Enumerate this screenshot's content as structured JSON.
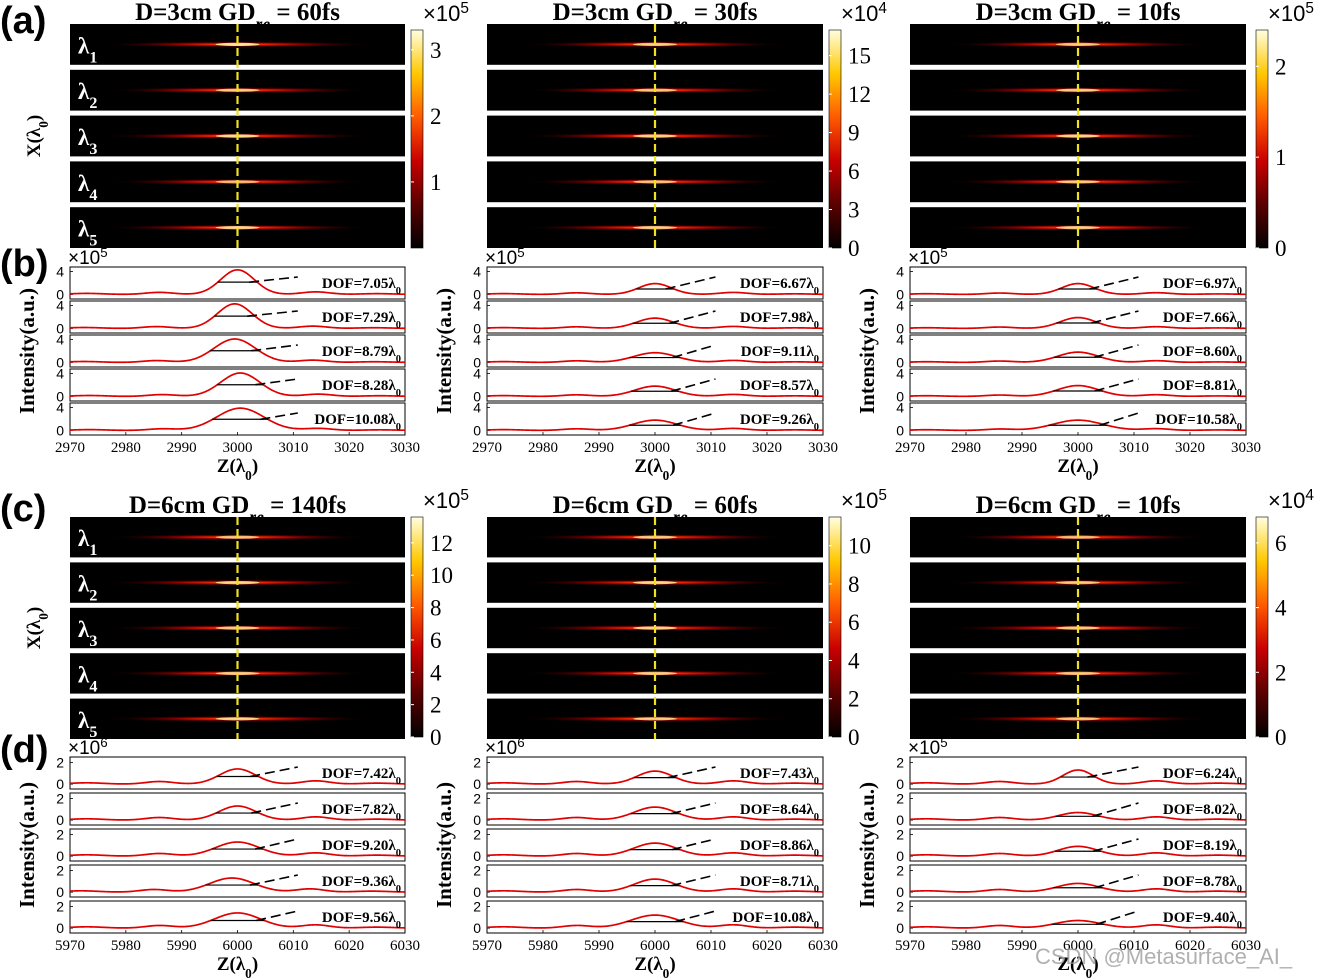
{
  "panel_letters": [
    "(a)",
    "(b)",
    "(c)",
    "(d)"
  ],
  "watermark": "CSDN @Metasurface_AI_",
  "colors": {
    "curve": "#e00000",
    "focus_line": "#f0e020",
    "fwhm_line": "#000000",
    "colormap": [
      "#000000",
      "#5a0000",
      "#c80000",
      "#ff5a00",
      "#ffc800",
      "#ffffe0"
    ]
  },
  "wavelength_labels": [
    "λ1",
    "λ2",
    "λ3",
    "λ4",
    "λ5"
  ],
  "chart_data": [
    {
      "id": "a1",
      "type": "heatmap",
      "title": "D=3cm  GDre = 60fs",
      "ylabel": "X(λ0)",
      "focus_z": 3000,
      "colorbar": {
        "exponent": "×10^5",
        "ticks": [
          "3",
          "2",
          "1"
        ],
        "max": 3.3
      },
      "band_peaks": [
        1.0,
        0.85,
        0.95,
        0.75,
        0.9
      ]
    },
    {
      "id": "a2",
      "type": "heatmap",
      "title": "D=3cm GDre = 30fs",
      "ylabel": "",
      "focus_z": 3000,
      "colorbar": {
        "exponent": "×10^4",
        "ticks": [
          "15",
          "12",
          "9",
          "6",
          "3",
          "0"
        ],
        "max": 17
      },
      "band_peaks": [
        0.85,
        0.8,
        0.9,
        0.8,
        0.85
      ]
    },
    {
      "id": "a3",
      "type": "heatmap",
      "title": "D=3cm GDre = 10fs",
      "ylabel": "",
      "focus_z": 3000,
      "colorbar": {
        "exponent": "×10^5",
        "ticks": [
          "2",
          "1",
          "0"
        ],
        "max": 2.4
      },
      "band_peaks": [
        0.8,
        0.85,
        0.9,
        0.85,
        0.85
      ]
    },
    {
      "id": "b1",
      "type": "line",
      "xlabel": "Z(λ0)",
      "ylabel": "Intensity(a.u.)",
      "exponent": "×10^5",
      "xlim": [
        2970,
        3030
      ],
      "xticks": [
        2970,
        2980,
        2990,
        3000,
        3010,
        3020,
        3030
      ],
      "yticks": [
        "4",
        "0"
      ],
      "ylim": [
        -0.8,
        4.8
      ],
      "series": [
        {
          "label": "DOF=7.05λ0",
          "center": 3000,
          "peak": 4.3,
          "sigma": 3.0,
          "side": 0.45,
          "dof": 7.05
        },
        {
          "label": "DOF=7.29λ0",
          "center": 2999.5,
          "peak": 4.3,
          "sigma": 3.1,
          "side": 0.4,
          "dof": 7.29
        },
        {
          "label": "DOF=8.79λ0",
          "center": 2999.5,
          "peak": 4.1,
          "sigma": 3.7,
          "side": 0.4,
          "dof": 8.79
        },
        {
          "label": "DOF=8.28λ0",
          "center": 3000.5,
          "peak": 4.1,
          "sigma": 3.5,
          "side": 0.4,
          "dof": 8.28
        },
        {
          "label": "DOF=10.08λ0",
          "center": 3000.5,
          "peak": 3.9,
          "sigma": 4.2,
          "side": 0.35,
          "dof": 10.08
        }
      ]
    },
    {
      "id": "b2",
      "type": "line",
      "xlabel": "Z(λ0)",
      "ylabel": "Intensity(a.u.)",
      "exponent": "×10^5",
      "xlim": [
        2970,
        3030
      ],
      "xticks": [
        2970,
        2980,
        2990,
        3000,
        3010,
        3020,
        3030
      ],
      "yticks": [
        "4",
        "0"
      ],
      "ylim": [
        -0.8,
        4.8
      ],
      "series": [
        {
          "label": "DOF=6.67λ0",
          "center": 3000,
          "peak": 1.9,
          "sigma": 2.9,
          "side": 0.35,
          "dof": 6.67
        },
        {
          "label": "DOF=7.98λ0",
          "center": 3000,
          "peak": 1.8,
          "sigma": 3.3,
          "side": 0.35,
          "dof": 7.98
        },
        {
          "label": "DOF=9.11λ0",
          "center": 3000,
          "peak": 1.7,
          "sigma": 3.8,
          "side": 0.35,
          "dof": 9.11
        },
        {
          "label": "DOF=8.57λ0",
          "center": 3000,
          "peak": 1.8,
          "sigma": 3.6,
          "side": 0.35,
          "dof": 8.57
        },
        {
          "label": "DOF=9.26λ0",
          "center": 3000,
          "peak": 1.8,
          "sigma": 3.9,
          "side": 0.35,
          "dof": 9.26
        }
      ]
    },
    {
      "id": "b3",
      "type": "line",
      "xlabel": "Z(λ0)",
      "ylabel": "Intensity(a.u.)",
      "exponent": "×10^5",
      "xlim": [
        2970,
        3030
      ],
      "xticks": [
        2970,
        2980,
        2990,
        3000,
        3010,
        3020,
        3030
      ],
      "yticks": [
        "4",
        "0"
      ],
      "ylim": [
        -0.8,
        4.8
      ],
      "series": [
        {
          "label": "DOF=6.97λ0",
          "center": 3000,
          "peak": 1.9,
          "sigma": 2.9,
          "side": 0.3,
          "dof": 6.97
        },
        {
          "label": "DOF=7.66λ0",
          "center": 3000,
          "peak": 1.9,
          "sigma": 3.2,
          "side": 0.3,
          "dof": 7.66
        },
        {
          "label": "DOF=8.60λ0",
          "center": 3000,
          "peak": 1.8,
          "sigma": 3.6,
          "side": 0.3,
          "dof": 8.6
        },
        {
          "label": "DOF=8.81λ0",
          "center": 3000,
          "peak": 1.9,
          "sigma": 3.7,
          "side": 0.3,
          "dof": 8.81
        },
        {
          "label": "DOF=10.58λ0",
          "center": 3000,
          "peak": 1.8,
          "sigma": 4.4,
          "side": 0.3,
          "dof": 10.58
        }
      ]
    },
    {
      "id": "c1",
      "type": "heatmap",
      "title": "D=6cm GDre = 140fs",
      "ylabel": "X(λ0)",
      "focus_z": 6000,
      "colorbar": {
        "exponent": "×10^5",
        "ticks": [
          "12",
          "10",
          "8",
          "6",
          "4",
          "2",
          "0"
        ],
        "max": 13.6
      },
      "band_peaks": [
        0.8,
        0.9,
        0.85,
        0.85,
        0.9
      ]
    },
    {
      "id": "c2",
      "type": "heatmap",
      "title": "D=6cm GDre = 60fs",
      "ylabel": "",
      "focus_z": 6000,
      "colorbar": {
        "exponent": "×10^5",
        "ticks": [
          "10",
          "8",
          "6",
          "4",
          "2",
          "0"
        ],
        "max": 11.5
      },
      "band_peaks": [
        0.85,
        0.9,
        0.9,
        0.85,
        0.85
      ]
    },
    {
      "id": "c3",
      "type": "heatmap",
      "title": "D=6cm GDre = 10fs",
      "ylabel": "",
      "focus_z": 6000,
      "colorbar": {
        "exponent": "×10^4",
        "ticks": [
          "6",
          "4",
          "2",
          "0"
        ],
        "max": 6.8
      },
      "band_peaks": [
        0.75,
        0.8,
        0.85,
        0.8,
        0.8
      ]
    },
    {
      "id": "d1",
      "type": "line",
      "xlabel": "Z(λ0)",
      "ylabel": "Intensity(a.u.)",
      "exponent": "×10^6",
      "xlim": [
        5970,
        6030
      ],
      "xticks": [
        5970,
        5980,
        5990,
        6000,
        6010,
        6020,
        6030
      ],
      "yticks": [
        "2",
        "0"
      ],
      "ylim": [
        -0.45,
        2.5
      ],
      "series": [
        {
          "label": "DOF=7.42λ0",
          "center": 6000,
          "peak": 1.4,
          "sigma": 3.2,
          "side": 0.3,
          "dof": 7.42
        },
        {
          "label": "DOF=7.82λ0",
          "center": 6000,
          "peak": 1.3,
          "sigma": 3.3,
          "side": 0.3,
          "dof": 7.82
        },
        {
          "label": "DOF=9.20λ0",
          "center": 6000,
          "peak": 1.3,
          "sigma": 3.9,
          "side": 0.3,
          "dof": 9.2
        },
        {
          "label": "DOF=9.36λ0",
          "center": 5999,
          "peak": 1.3,
          "sigma": 4.0,
          "side": 0.3,
          "dof": 9.36
        },
        {
          "label": "DOF=9.56λ0",
          "center": 6000,
          "peak": 1.4,
          "sigma": 4.1,
          "side": 0.3,
          "dof": 9.56
        }
      ]
    },
    {
      "id": "d2",
      "type": "line",
      "xlabel": "Z(λ0)",
      "ylabel": "Intensity(a.u.)",
      "exponent": "×10^6",
      "xlim": [
        5970,
        6030
      ],
      "xticks": [
        5970,
        5980,
        5990,
        6000,
        6010,
        6020,
        6030
      ],
      "yticks": [
        "2",
        "0"
      ],
      "ylim": [
        -0.45,
        2.5
      ],
      "series": [
        {
          "label": "DOF=7.43λ0",
          "center": 6000,
          "peak": 1.2,
          "sigma": 3.2,
          "side": 0.3,
          "dof": 7.43
        },
        {
          "label": "DOF=8.64λ0",
          "center": 6000,
          "peak": 1.2,
          "sigma": 3.7,
          "side": 0.3,
          "dof": 8.64
        },
        {
          "label": "DOF=8.86λ0",
          "center": 6000,
          "peak": 1.2,
          "sigma": 3.8,
          "side": 0.3,
          "dof": 8.86
        },
        {
          "label": "DOF=8.71λ0",
          "center": 6000,
          "peak": 1.2,
          "sigma": 3.7,
          "side": 0.3,
          "dof": 8.71
        },
        {
          "label": "DOF=10.08λ0",
          "center": 6000,
          "peak": 1.2,
          "sigma": 4.3,
          "side": 0.3,
          "dof": 10.08
        }
      ]
    },
    {
      "id": "d3",
      "type": "line",
      "xlabel": "Z(λ0)",
      "ylabel": "Intensity(a.u.)",
      "exponent": "×10^5",
      "xlim": [
        5970,
        6030
      ],
      "xticks": [
        5970,
        5980,
        5990,
        6000,
        6010,
        6020,
        6030
      ],
      "yticks": [
        "2",
        "0"
      ],
      "ylim": [
        -0.45,
        2.5
      ],
      "series": [
        {
          "label": "DOF=6.24λ0",
          "center": 6000,
          "peak": 1.3,
          "sigma": 2.7,
          "side": 0.3,
          "dof": 6.24
        },
        {
          "label": "DOF=8.02λ0",
          "center": 6000,
          "peak": 0.7,
          "sigma": 3.4,
          "side": 0.3,
          "dof": 8.02
        },
        {
          "label": "DOF=8.19λ0",
          "center": 6000,
          "peak": 0.9,
          "sigma": 3.5,
          "side": 0.3,
          "dof": 8.19
        },
        {
          "label": "DOF=8.78λ0",
          "center": 6000,
          "peak": 0.8,
          "sigma": 3.7,
          "side": 0.3,
          "dof": 8.78
        },
        {
          "label": "DOF=9.40λ0",
          "center": 6000,
          "peak": 0.7,
          "sigma": 4.0,
          "side": 0.3,
          "dof": 9.4
        }
      ]
    }
  ]
}
